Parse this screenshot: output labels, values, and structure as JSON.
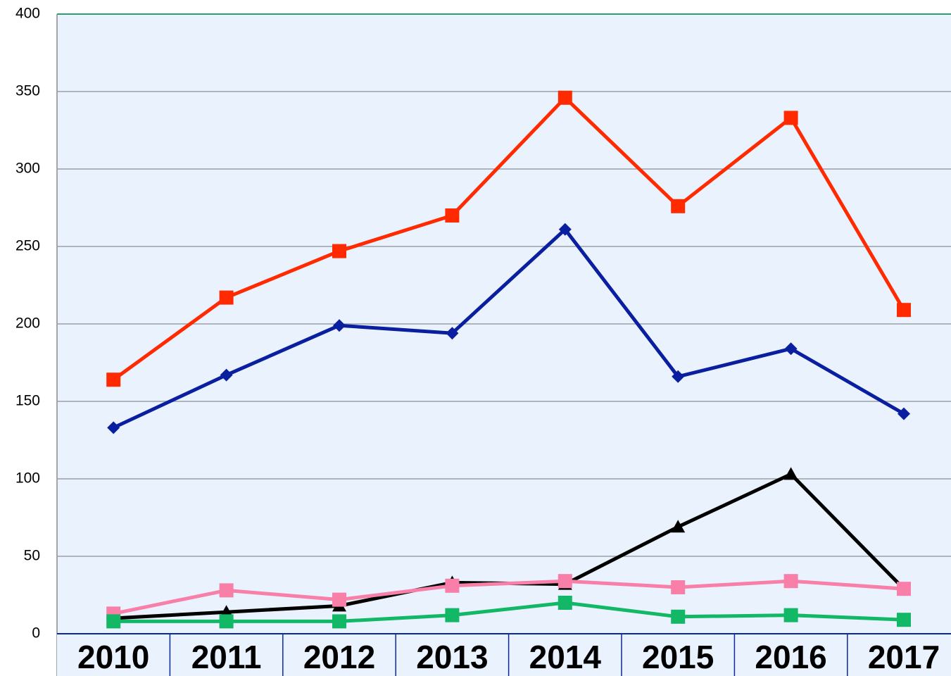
{
  "chart_data": {
    "type": "line",
    "categories": [
      "2010",
      "2011",
      "2012",
      "2013",
      "2014",
      "2015",
      "2016",
      "2017"
    ],
    "series": [
      {
        "color": "#ff2a00",
        "marker": "square",
        "values": [
          164,
          217,
          247,
          270,
          346,
          276,
          333,
          209
        ]
      },
      {
        "color": "#0a1fa0",
        "marker": "diamond",
        "values": [
          133,
          167,
          199,
          194,
          261,
          166,
          184,
          142
        ]
      },
      {
        "color": "#000000",
        "marker": "triangle",
        "values": [
          10,
          14,
          18,
          33,
          32,
          69,
          103,
          29
        ]
      },
      {
        "color": "#f77fa8",
        "marker": "square",
        "values": [
          13,
          28,
          22,
          31,
          34,
          30,
          34,
          29
        ]
      },
      {
        "color": "#12b865",
        "marker": "square",
        "values": [
          8,
          8,
          8,
          12,
          20,
          11,
          12,
          9
        ]
      }
    ],
    "ylim": [
      0,
      400
    ],
    "yticks": [
      0,
      50,
      100,
      150,
      200,
      250,
      300,
      350,
      400
    ],
    "grid": true
  }
}
